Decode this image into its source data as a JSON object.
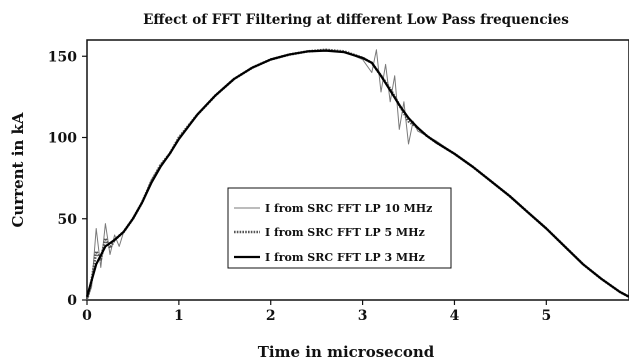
{
  "chart_data": {
    "type": "line",
    "title": "Effect of FFT Filtering at different Low Pass frequencies",
    "xlabel": "Time in microsecond",
    "ylabel": "Current in kA",
    "xlim": [
      0,
      5.9
    ],
    "ylim": [
      0,
      160
    ],
    "xticks": [
      0,
      1,
      2,
      3,
      4,
      5
    ],
    "yticks": [
      0,
      50,
      100,
      150
    ],
    "legend_position": "center",
    "grid": false,
    "series": [
      {
        "name": "I  from SRC FFT LP 10 MHz",
        "color": "#7a7a7a",
        "x": [
          0,
          0.05,
          0.1,
          0.15,
          0.2,
          0.25,
          0.3,
          0.35,
          0.4,
          0.5,
          0.6,
          0.7,
          0.8,
          0.9,
          1.0,
          1.2,
          1.4,
          1.6,
          1.8,
          2.0,
          2.2,
          2.4,
          2.6,
          2.8,
          3.0,
          3.1,
          3.15,
          3.2,
          3.25,
          3.3,
          3.35,
          3.4,
          3.45,
          3.5,
          3.55,
          3.6,
          3.7,
          3.8,
          4.0,
          4.2,
          4.4,
          4.6,
          4.8,
          5.0,
          5.2,
          5.4,
          5.6,
          5.8,
          5.9
        ],
        "y": [
          0,
          8,
          44,
          20,
          47,
          28,
          40,
          33,
          42,
          50,
          60,
          74,
          83,
          90,
          100,
          114,
          126,
          136,
          143,
          148,
          151,
          153,
          154,
          153,
          148,
          140,
          154,
          128,
          145,
          122,
          138,
          105,
          122,
          96,
          110,
          104,
          101,
          98,
          90,
          82,
          73,
          64,
          54,
          44,
          33,
          22,
          13,
          5,
          2
        ]
      },
      {
        "name": "I  from SRC FFT LP 5 MHz",
        "color": "#555555",
        "x": [
          0,
          0.05,
          0.1,
          0.15,
          0.2,
          0.25,
          0.3,
          0.4,
          0.5,
          0.6,
          0.7,
          0.8,
          0.9,
          1.0,
          1.2,
          1.4,
          1.6,
          1.8,
          2.0,
          2.2,
          2.4,
          2.6,
          2.8,
          3.0,
          3.1,
          3.2,
          3.3,
          3.4,
          3.5,
          3.6,
          3.7,
          3.8,
          4.0,
          4.2,
          4.4,
          4.6,
          4.8,
          5.0,
          5.2,
          5.4,
          5.6,
          5.8,
          5.9
        ],
        "y": [
          0,
          12,
          30,
          25,
          38,
          32,
          37,
          42,
          50,
          60,
          73,
          83,
          90,
          100,
          114,
          126,
          136,
          143,
          148,
          151,
          153,
          154,
          153,
          149,
          146,
          138,
          130,
          120,
          110,
          106,
          101,
          97,
          90,
          82,
          73,
          64,
          54,
          44,
          33,
          22,
          13,
          5,
          2
        ]
      },
      {
        "name": "I  from SRC FFT LP 3 MHz",
        "color": "#000000",
        "x": [
          0,
          0.1,
          0.2,
          0.3,
          0.4,
          0.5,
          0.6,
          0.7,
          0.8,
          0.9,
          1.0,
          1.2,
          1.4,
          1.6,
          1.8,
          2.0,
          2.2,
          2.4,
          2.6,
          2.8,
          3.0,
          3.1,
          3.2,
          3.3,
          3.4,
          3.5,
          3.6,
          3.7,
          3.8,
          4.0,
          4.2,
          4.4,
          4.6,
          4.8,
          5.0,
          5.2,
          5.4,
          5.6,
          5.8,
          5.9
        ],
        "y": [
          2,
          22,
          33,
          37,
          42,
          50,
          60,
          72,
          82,
          90,
          99,
          114,
          126,
          136,
          143,
          148,
          151,
          153,
          153.5,
          152.5,
          149,
          146,
          138,
          129,
          120,
          112,
          106,
          101,
          97,
          90,
          82,
          73,
          64,
          54,
          44,
          33,
          22,
          13,
          5,
          2
        ]
      }
    ]
  }
}
